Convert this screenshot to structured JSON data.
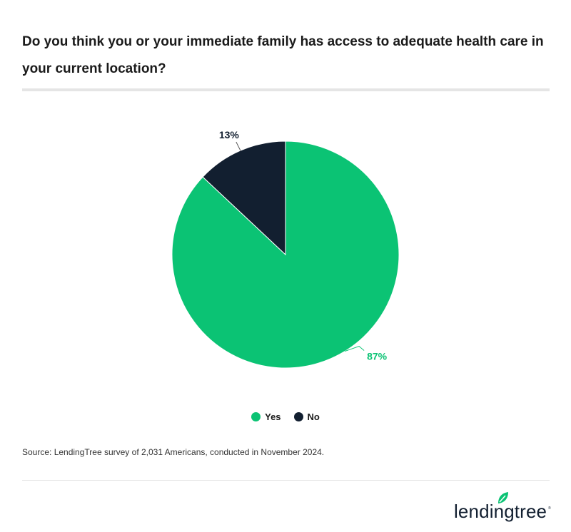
{
  "chart_data": {
    "type": "pie",
    "title": "Do you think you or your immediate family has access to adequate health care in your current location?",
    "slices": [
      {
        "name": "Yes",
        "value": 87,
        "label": "87%",
        "color": "#0bc374"
      },
      {
        "name": "No",
        "value": 13,
        "label": "13%",
        "color": "#121f30"
      }
    ],
    "start_angle": "12 o'clock, clockwise",
    "legend_placement": "bottom"
  },
  "source": "Source: LendingTree survey of 2,031 Americans, conducted in November 2024.",
  "logo": {
    "text": "lendingtree",
    "brand_color": "#0bc374"
  }
}
